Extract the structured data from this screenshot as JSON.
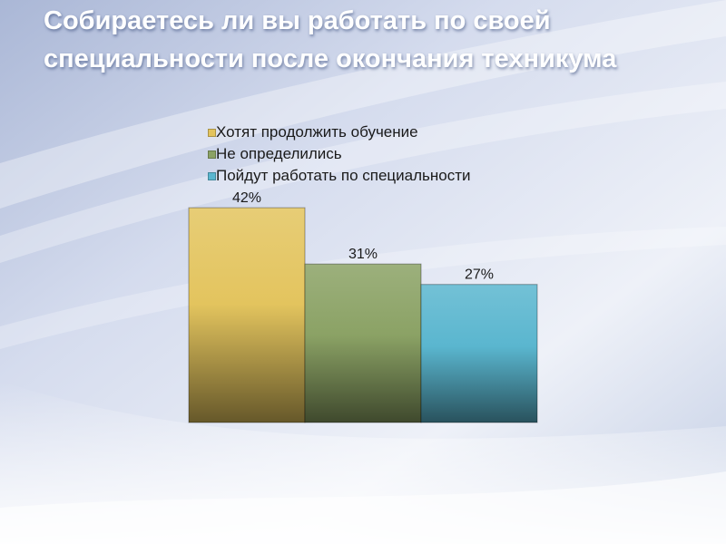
{
  "slide": {
    "title": "Собираетесь ли вы работать по своей специальности после окончания техникума"
  },
  "colors": {
    "background": "#c9d3e8",
    "title_text": "#ffffff",
    "series": [
      "#e3c45e",
      "#8ba265",
      "#5ab6cf"
    ]
  },
  "chart_data": {
    "type": "bar",
    "title": "",
    "categories": [
      "Хотят продолжить обучение",
      "Не определились",
      "Пойдут работать по специальности"
    ],
    "values": [
      42,
      31,
      27
    ],
    "value_labels": [
      "42%",
      "31%",
      "27%"
    ],
    "unit": "%",
    "ylim": [
      0,
      50
    ],
    "grid": false,
    "axes_visible": false,
    "legend": {
      "position": "top",
      "entries": [
        "Хотят продолжить обучение",
        "Не определились",
        "Пойдут работать по специальности"
      ]
    }
  }
}
